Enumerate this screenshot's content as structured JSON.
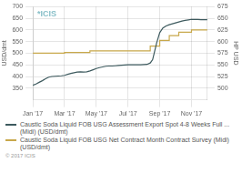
{
  "chart_data": {
    "type": "line",
    "xlim": [
      0,
      11
    ],
    "xticks": [
      {
        "value": 0,
        "label": "Jan '17"
      },
      {
        "value": 2,
        "label": "Mar '17"
      },
      {
        "value": 4,
        "label": "May '17"
      },
      {
        "value": 6,
        "label": "Jul '17"
      },
      {
        "value": 8,
        "label": "Sep '17"
      },
      {
        "value": 10,
        "label": "Nov '17"
      }
    ],
    "ylabel": "USD/dmt",
    "ylim": [
      300,
      700
    ],
    "yticks": [
      350,
      400,
      450,
      500,
      550,
      600,
      650,
      700
    ],
    "y2label": "HP USD",
    "y2lim": [
      475,
      675
    ],
    "y2ticks": [
      500,
      525,
      550,
      575,
      600,
      625,
      650,
      675
    ],
    "grid": true,
    "legend": "bottom",
    "annotations": [
      "*ICIS",
      "© 2017 ICIS"
    ],
    "series": [
      {
        "name": "Caustic Soda Liquid FOB USG Assessment Export Spot 4-8 Weeks Full ... (Midi) (USD/dmt)",
        "color": "#3d5a5e",
        "x": [
          0.0,
          0.2,
          0.4,
          0.6,
          0.8,
          1.0,
          1.2,
          1.4,
          1.6,
          1.8,
          2.0,
          2.2,
          2.4,
          2.6,
          2.8,
          3.0,
          3.2,
          3.4,
          3.6,
          3.8,
          4.0,
          4.2,
          4.4,
          4.6,
          4.8,
          5.0,
          5.2,
          5.4,
          5.6,
          5.8,
          6.0,
          6.2,
          6.4,
          6.6,
          6.8,
          7.0,
          7.2,
          7.4,
          7.55,
          7.65,
          7.8,
          8.0,
          8.2,
          8.4,
          8.6,
          8.8,
          9.0,
          9.2,
          9.4,
          9.6,
          9.8,
          10.0,
          10.2,
          10.4,
          10.6,
          10.8,
          11.0
        ],
        "values": [
          362,
          368,
          375,
          382,
          390,
          397,
          400,
          401,
          402,
          403,
          405,
          409,
          413,
          416,
          419,
          420,
          419,
          420,
          424,
          429,
          434,
          438,
          441,
          444,
          445,
          445,
          446,
          447,
          448,
          449,
          450,
          450,
          450,
          450,
          450,
          451,
          452,
          458,
          472,
          500,
          543,
          588,
          608,
          617,
          622,
          626,
          630,
          634,
          638,
          641,
          643,
          645,
          645,
          645,
          644,
          644,
          644
        ]
      },
      {
        "name": "Caustic Soda Liquid FOB USG Net Contract Month Contract Survey (Midi) (USD/dmt)",
        "color": "#c8a84b",
        "x": [
          0.0,
          2.0,
          2.0,
          3.6,
          3.6,
          7.4,
          7.4,
          8.0,
          8.0,
          8.6,
          8.6,
          9.2,
          9.2,
          10.0,
          10.0,
          11.0
        ],
        "values": [
          500,
          500,
          503,
          503,
          510,
          510,
          530,
          530,
          555,
          555,
          575,
          575,
          590,
          590,
          600,
          600
        ]
      }
    ]
  }
}
